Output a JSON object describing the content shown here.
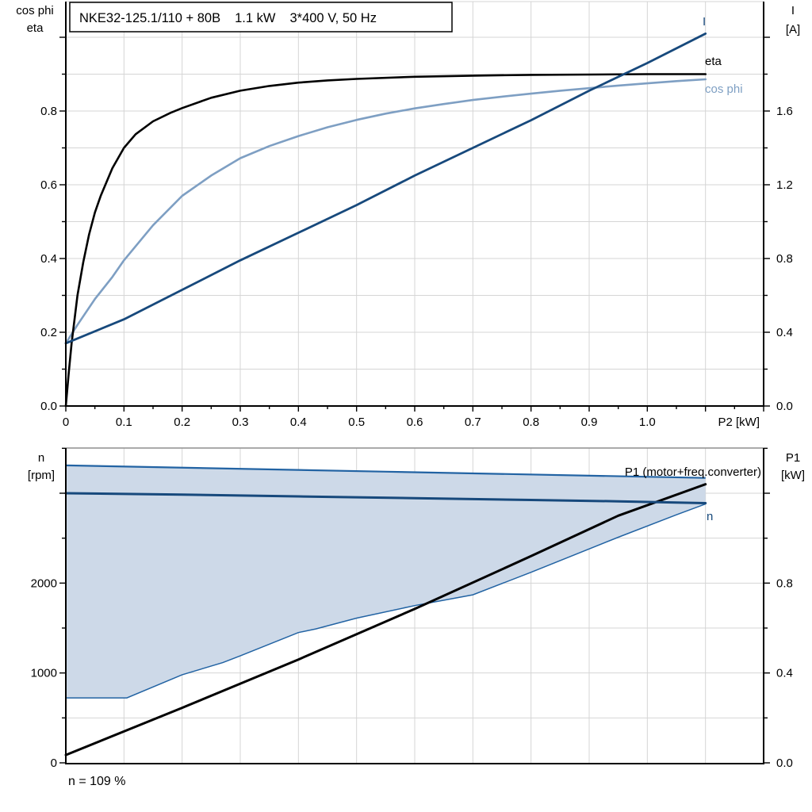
{
  "colors": {
    "black": "#000000",
    "navy": "#17497c",
    "lightblue": "#7e9fc3",
    "band_fill": "#cdd9e8",
    "band_edge": "#2263a3",
    "grid": "#d5d5d5",
    "border_gray": "#8f8f8f"
  },
  "chart_data": [
    {
      "id": "top",
      "type": "line",
      "title_box_parts": [
        "NKE32-125.1/110 + 80B",
        "1.1 kW",
        "3*400 V, 50 Hz"
      ],
      "x_axis": {
        "end_label": "P2 [kW]",
        "min": 0,
        "max": 1.2,
        "tick_values": [
          0,
          0.1,
          0.2,
          0.3,
          0.4,
          0.5,
          0.6,
          0.7,
          0.8,
          0.9,
          1.0
        ],
        "tick_labels": [
          "0",
          "0.1",
          "0.2",
          "0.3",
          "0.4",
          "0.5",
          "0.6",
          "0.7",
          "0.8",
          "0.9",
          "1.0"
        ],
        "minor_step": 0.05,
        "grid_step": 0.1
      },
      "y_left": {
        "title_lines": [
          "cos phi",
          "eta"
        ],
        "min": 0,
        "max": 1.1,
        "tick_values": [
          0,
          0.2,
          0.4,
          0.6,
          0.8
        ],
        "tick_labels": [
          "0.0",
          "0.2",
          "0.4",
          "0.6",
          "0.8"
        ],
        "minor_step": 0.1,
        "grid_step": 0.1
      },
      "y_right": {
        "title_lines": [
          "I",
          "[A]"
        ],
        "min": 0,
        "max": 2.2,
        "tick_values": [
          0,
          0.4,
          0.8,
          1.2,
          1.6
        ],
        "tick_labels": [
          "0.0",
          "0.4",
          "0.8",
          "1.2",
          "1.6"
        ],
        "minor_step": 0.2
      },
      "series": [
        {
          "name": "cos phi",
          "label": "cos phi",
          "axis": "left",
          "color_key": "lightblue",
          "width": 2.6,
          "points": [
            [
              0,
              0.17
            ],
            [
              0.02,
              0.22
            ],
            [
              0.05,
              0.29
            ],
            [
              0.08,
              0.35
            ],
            [
              0.1,
              0.395
            ],
            [
              0.15,
              0.49
            ],
            [
              0.2,
              0.57
            ],
            [
              0.25,
              0.625
            ],
            [
              0.3,
              0.672
            ],
            [
              0.35,
              0.705
            ],
            [
              0.4,
              0.732
            ],
            [
              0.45,
              0.756
            ],
            [
              0.5,
              0.776
            ],
            [
              0.55,
              0.793
            ],
            [
              0.6,
              0.807
            ],
            [
              0.65,
              0.819
            ],
            [
              0.7,
              0.83
            ],
            [
              0.75,
              0.839
            ],
            [
              0.8,
              0.847
            ],
            [
              0.85,
              0.855
            ],
            [
              0.9,
              0.862
            ],
            [
              0.95,
              0.869
            ],
            [
              1.0,
              0.875
            ],
            [
              1.05,
              0.881
            ],
            [
              1.1,
              0.886
            ]
          ]
        },
        {
          "name": "eta",
          "label": "eta",
          "axis": "left",
          "color_key": "black",
          "width": 2.6,
          "points": [
            [
              0,
              0
            ],
            [
              0.005,
              0.09
            ],
            [
              0.01,
              0.17
            ],
            [
              0.02,
              0.3
            ],
            [
              0.03,
              0.39
            ],
            [
              0.04,
              0.465
            ],
            [
              0.05,
              0.525
            ],
            [
              0.06,
              0.57
            ],
            [
              0.08,
              0.645
            ],
            [
              0.1,
              0.7
            ],
            [
              0.12,
              0.737
            ],
            [
              0.15,
              0.772
            ],
            [
              0.18,
              0.795
            ],
            [
              0.2,
              0.808
            ],
            [
              0.25,
              0.836
            ],
            [
              0.3,
              0.855
            ],
            [
              0.35,
              0.868
            ],
            [
              0.4,
              0.877
            ],
            [
              0.45,
              0.883
            ],
            [
              0.5,
              0.887
            ],
            [
              0.6,
              0.893
            ],
            [
              0.7,
              0.896
            ],
            [
              0.8,
              0.898
            ],
            [
              0.9,
              0.899
            ],
            [
              1.0,
              0.9
            ],
            [
              1.1,
              0.9
            ]
          ]
        },
        {
          "name": "I",
          "label": "I",
          "axis": "right",
          "color_key": "navy",
          "width": 2.8,
          "points": [
            [
              0,
              0.34
            ],
            [
              0.1,
              0.47
            ],
            [
              0.2,
              0.63
            ],
            [
              0.3,
              0.79
            ],
            [
              0.4,
              0.94
            ],
            [
              0.5,
              1.09
            ],
            [
              0.6,
              1.25
            ],
            [
              0.7,
              1.4
            ],
            [
              0.8,
              1.55
            ],
            [
              0.9,
              1.71
            ],
            [
              1.0,
              1.86
            ],
            [
              1.1,
              2.02
            ]
          ]
        }
      ]
    },
    {
      "id": "bottom",
      "type": "line",
      "caption": "n = 109 %",
      "x_axis": {
        "min": 0,
        "max": 1.2,
        "grid_step": 0.1
      },
      "y_left": {
        "title_lines": [
          "n",
          "[rpm]"
        ],
        "min": 0,
        "max": 3500,
        "tick_values": [
          0,
          1000,
          2000,
          3000
        ],
        "tick_labels": [
          "0",
          "1000",
          "2000",
          ""
        ],
        "minor_step": 500,
        "grid_step": 500
      },
      "y_right": {
        "title_lines": [
          "P1",
          "[kW]"
        ],
        "min": 0,
        "max": 1.4,
        "tick_values": [
          0,
          0.4,
          0.8,
          1.2
        ],
        "tick_labels": [
          "0.0",
          "0.4",
          "0.8",
          ""
        ],
        "minor_step": 0.2,
        "grid_step": 0.2
      },
      "band": {
        "name": "speed range envelope",
        "top_boundary": [
          [
            0,
            3310
          ],
          [
            0.55,
            3240
          ],
          [
            1.1,
            3170
          ]
        ],
        "bottom_boundary": [
          [
            0,
            723
          ],
          [
            0.105,
            723
          ],
          [
            0.2,
            980
          ],
          [
            0.27,
            1115
          ],
          [
            0.3,
            1190
          ],
          [
            0.4,
            1450
          ],
          [
            0.43,
            1490
          ],
          [
            0.5,
            1610
          ],
          [
            0.6,
            1750
          ],
          [
            0.7,
            1870
          ],
          [
            0.8,
            2120
          ],
          [
            0.95,
            2510
          ],
          [
            1.05,
            2760
          ],
          [
            1.1,
            2880
          ]
        ]
      },
      "series": [
        {
          "name": "P1",
          "label": "P1 (motor+freq.converter)",
          "axis": "right",
          "color_key": "black",
          "width": 3,
          "points": [
            [
              0,
              0.035
            ],
            [
              0.2,
              0.245
            ],
            [
              0.4,
              0.46
            ],
            [
              0.6,
              0.685
            ],
            [
              0.8,
              0.92
            ],
            [
              0.95,
              1.1
            ],
            [
              1.1,
              1.24
            ]
          ]
        },
        {
          "name": "n",
          "label": "n",
          "axis": "left",
          "color_key": "navy",
          "width": 3,
          "points": [
            [
              0,
              3000
            ],
            [
              0.2,
              2985
            ],
            [
              0.4,
              2965
            ],
            [
              0.6,
              2945
            ],
            [
              0.8,
              2925
            ],
            [
              0.95,
              2910
            ],
            [
              1.1,
              2890
            ]
          ]
        }
      ]
    }
  ]
}
